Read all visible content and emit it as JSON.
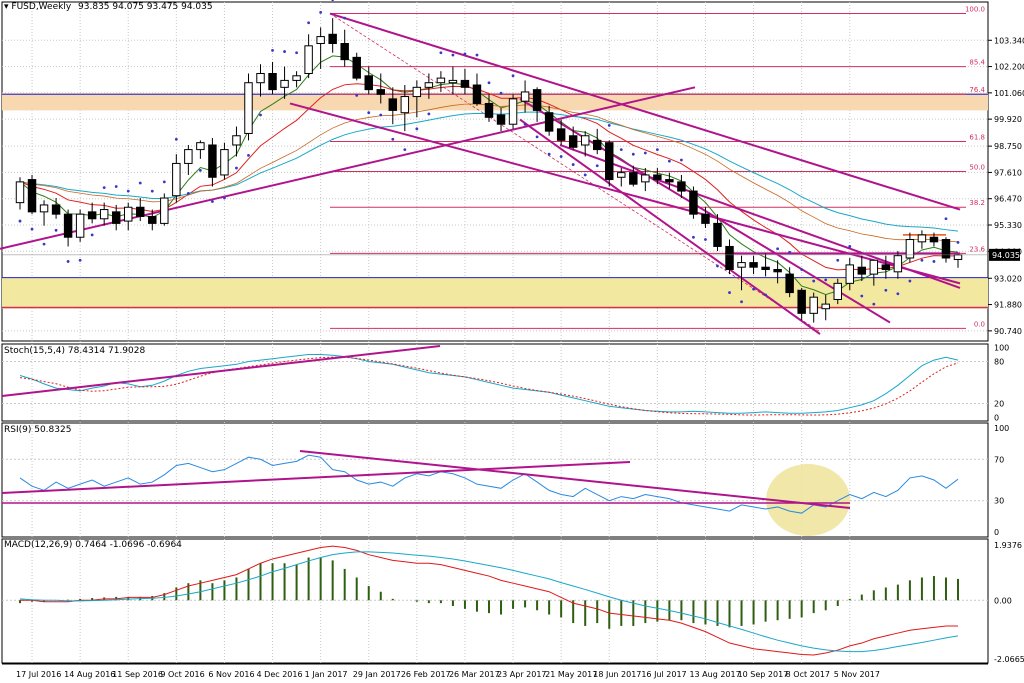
{
  "panels": {
    "price": {
      "title": "FUSD,Weekly",
      "ohlc_text": "93.835 94.075 93.475 94.035",
      "current_price": "94.035",
      "ylim": [
        90.3,
        105.0
      ],
      "yticks": [
        "103.340",
        "102.200",
        "101.060",
        "99.920",
        "98.750",
        "97.610",
        "96.470",
        "95.330",
        "94.190",
        "93.020",
        "91.880",
        "90.740"
      ],
      "fib_levels": [
        {
          "label": "100.0",
          "value": 104.5
        },
        {
          "label": "85.4",
          "value": 102.2
        },
        {
          "label": "76.4",
          "value": 101.0
        },
        {
          "label": "61.8",
          "value": 98.95
        },
        {
          "label": "50.0",
          "value": 97.65
        },
        {
          "label": "38.2",
          "value": 96.1
        },
        {
          "label": "23.6",
          "value": 94.1
        },
        {
          "label": "0.0",
          "value": 90.85
        }
      ]
    },
    "stoch": {
      "title": "Stoch(15,5,4) 78.4314 71.9028",
      "yticks": [
        "100",
        "80",
        "20",
        "0"
      ]
    },
    "rsi": {
      "title": "RSI(9) 50.8325",
      "yticks": [
        "100",
        "70",
        "30",
        "0"
      ]
    },
    "macd": {
      "title": "MACD(12,26,9) 0.7464 -1.0696 -0.6964",
      "yticks": [
        "1.9376",
        "0.00",
        "-2.0665"
      ]
    }
  },
  "colors": {
    "up_candle": "#ffffff",
    "down_candle": "#000000",
    "fib": "#d03060",
    "trend": "#b0148c",
    "ema_fast": "#2e7d1a",
    "ema_slow": "#e02020",
    "cyan": "#18a8c8",
    "sar": "#3838c8",
    "resistance_zone": "#f8d8b0",
    "support_zone": "#f3e8a0",
    "rsi_line": "#2a8ae0",
    "macd_hist": "#2e5e10"
  },
  "x_labels": [
    "17 Jul 2016",
    "14 Aug 2016",
    "11 Sep 2016",
    "9 Oct 2016",
    "6 Nov 2016",
    "4 Dec 2016",
    "1 Jan 2017",
    "29 Jan 2017",
    "26 Feb 2017",
    "26 Mar 2017",
    "23 Apr 2017",
    "21 May 2017",
    "18 Jun 2017",
    "16 Jul 2017",
    "13 Aug 2017",
    "10 Sep 2017",
    "8 Oct 2017",
    "5 Nov 2017"
  ],
  "chart_data": {
    "type": "candlestick",
    "title": "FUSD,Weekly",
    "ylim": [
      90.3,
      105.0
    ],
    "candles": [
      [
        96.3,
        97.4,
        96.0,
        97.2
      ],
      [
        97.3,
        97.5,
        95.8,
        95.9
      ],
      [
        95.9,
        96.4,
        95.3,
        96.2
      ],
      [
        96.2,
        96.5,
        95.6,
        95.8
      ],
      [
        95.8,
        96.0,
        94.4,
        94.8
      ],
      [
        94.8,
        96.0,
        94.6,
        95.8
      ],
      [
        95.9,
        96.3,
        95.4,
        95.6
      ],
      [
        95.6,
        96.3,
        95.3,
        96.0
      ],
      [
        95.9,
        96.2,
        95.1,
        95.4
      ],
      [
        95.5,
        96.3,
        95.1,
        96.1
      ],
      [
        96.1,
        96.5,
        95.5,
        95.7
      ],
      [
        95.7,
        96.0,
        95.1,
        95.4
      ],
      [
        95.4,
        96.7,
        95.3,
        96.5
      ],
      [
        96.6,
        98.4,
        96.3,
        98.0
      ],
      [
        98.0,
        98.8,
        97.5,
        98.6
      ],
      [
        98.6,
        99.0,
        98.2,
        98.9
      ],
      [
        98.8,
        99.1,
        97.0,
        97.4
      ],
      [
        97.5,
        98.9,
        97.3,
        98.6
      ],
      [
        98.8,
        99.6,
        98.3,
        99.2
      ],
      [
        99.3,
        101.9,
        99.0,
        101.5
      ],
      [
        101.5,
        102.3,
        100.9,
        101.9
      ],
      [
        101.9,
        102.4,
        101.0,
        101.2
      ],
      [
        101.3,
        102.2,
        100.8,
        101.6
      ],
      [
        101.6,
        102.0,
        101.3,
        101.8
      ],
      [
        101.9,
        103.6,
        101.7,
        103.1
      ],
      [
        103.2,
        103.9,
        102.1,
        103.5
      ],
      [
        103.6,
        104.3,
        102.8,
        103.2
      ],
      [
        103.2,
        103.8,
        102.2,
        102.5
      ],
      [
        102.6,
        102.8,
        101.6,
        101.7
      ],
      [
        101.8,
        102.2,
        101.0,
        101.2
      ],
      [
        101.2,
        101.9,
        100.6,
        101.0
      ],
      [
        100.8,
        101.3,
        99.7,
        100.3
      ],
      [
        100.2,
        101.4,
        99.4,
        100.9
      ],
      [
        100.9,
        101.6,
        100.0,
        101.3
      ],
      [
        101.3,
        101.9,
        100.8,
        101.5
      ],
      [
        101.5,
        102.0,
        101.1,
        101.7
      ],
      [
        101.5,
        102.2,
        101.0,
        101.6
      ],
      [
        101.6,
        102.1,
        101.0,
        101.3
      ],
      [
        101.4,
        101.9,
        100.5,
        100.6
      ],
      [
        100.6,
        101.0,
        99.8,
        100.0
      ],
      [
        100.1,
        100.4,
        99.4,
        99.7
      ],
      [
        99.7,
        101.0,
        99.5,
        100.8
      ],
      [
        100.7,
        101.6,
        100.2,
        101.1
      ],
      [
        101.2,
        101.3,
        99.8,
        100.3
      ],
      [
        100.2,
        100.5,
        99.2,
        99.4
      ],
      [
        99.5,
        99.9,
        98.8,
        99.0
      ],
      [
        99.2,
        99.6,
        98.6,
        98.7
      ],
      [
        98.8,
        99.4,
        98.3,
        99.2
      ],
      [
        99.0,
        99.5,
        98.4,
        98.6
      ],
      [
        98.9,
        99.0,
        97.0,
        97.3
      ],
      [
        97.4,
        97.8,
        97.0,
        97.6
      ],
      [
        97.6,
        97.9,
        97.0,
        97.1
      ],
      [
        97.2,
        97.8,
        96.8,
        97.5
      ],
      [
        97.5,
        97.8,
        97.1,
        97.3
      ],
      [
        97.3,
        97.6,
        96.9,
        97.2
      ],
      [
        97.2,
        97.5,
        96.5,
        96.8
      ],
      [
        96.8,
        97.0,
        95.6,
        95.8
      ],
      [
        95.8,
        96.1,
        95.2,
        95.4
      ],
      [
        95.4,
        95.8,
        94.2,
        94.4
      ],
      [
        94.4,
        94.7,
        93.2,
        93.4
      ],
      [
        93.5,
        94.0,
        92.5,
        93.7
      ],
      [
        93.7,
        94.0,
        93.2,
        93.5
      ],
      [
        93.5,
        94.1,
        93.1,
        93.4
      ],
      [
        93.4,
        93.8,
        92.8,
        93.3
      ],
      [
        93.2,
        93.5,
        92.2,
        92.4
      ],
      [
        92.5,
        92.6,
        91.2,
        91.5
      ],
      [
        91.5,
        92.4,
        91.1,
        92.2
      ],
      [
        91.7,
        92.3,
        91.2,
        91.9
      ],
      [
        92.1,
        93.0,
        91.9,
        92.8
      ],
      [
        92.8,
        93.9,
        92.5,
        93.6
      ],
      [
        93.5,
        94.0,
        92.9,
        93.2
      ],
      [
        93.2,
        93.8,
        92.7,
        93.8
      ],
      [
        93.6,
        94.0,
        93.0,
        93.4
      ],
      [
        93.3,
        94.2,
        93.0,
        94.0
      ],
      [
        93.9,
        95.0,
        93.7,
        94.7
      ],
      [
        94.6,
        95.1,
        94.3,
        94.9
      ],
      [
        94.8,
        95.0,
        94.4,
        94.6
      ],
      [
        94.7,
        94.8,
        93.7,
        93.9
      ],
      [
        93.835,
        94.075,
        93.475,
        94.035
      ]
    ],
    "indicators": [
      "EMA fast",
      "EMA slow",
      "SAR",
      "Stoch(15,5,4)",
      "RSI(9)",
      "MACD(12,26,9)"
    ]
  }
}
